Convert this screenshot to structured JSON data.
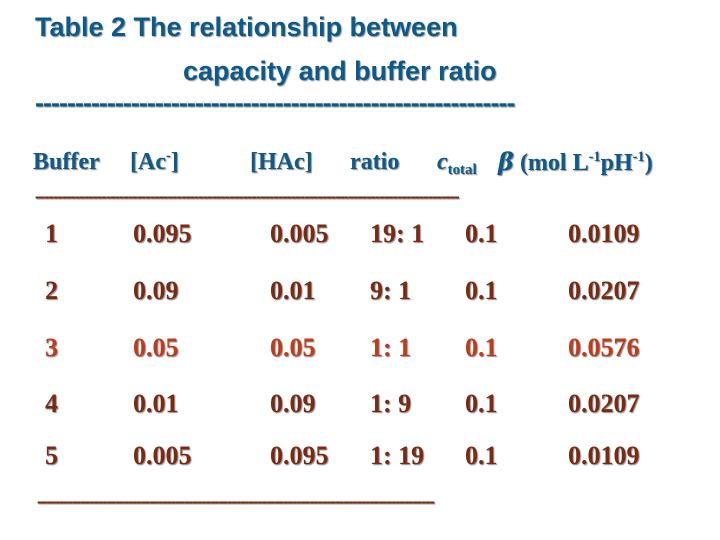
{
  "title_line1": "Table 2 The relationship between",
  "title_line2": "capacity and buffer ratio",
  "title_rule": "------------------------------------------------------------",
  "header": {
    "buffer": "Buffer",
    "ac_prefix": "[Ac",
    "ac_sup": "-",
    "ac_suffix": "]",
    "hac": "[HAc]",
    "ratio": "ratio",
    "ctotal_base": "c",
    "ctotal_sub": "total",
    "beta_symbol": "β",
    "beta_unit_a": " (mol L",
    "beta_sup1": "-1",
    "beta_unit_b": "pH",
    "beta_sup2": "-1",
    "beta_unit_c": ")"
  },
  "header_rule": "------------------------------------------------------------------------------------------------",
  "rows": [
    {
      "buffer": "1",
      "ac": "0.095",
      "hac": "0.005",
      "ratio": "19: 1",
      "ctotal": "0.1",
      "beta": "0.0109"
    },
    {
      "buffer": "2",
      "ac": "0.09",
      "hac": "0.01",
      "ratio": "9: 1",
      "ctotal": "0.1",
      "beta": "0.0207"
    },
    {
      "buffer": "3",
      "ac": "0.05",
      "hac": "0.05",
      "ratio": "1: 1",
      "ctotal": "0.1",
      "beta": "0.0576"
    },
    {
      "buffer": "4",
      "ac": "0.01",
      "hac": "0.09",
      "ratio": "1: 9",
      "ctotal": "0.1",
      "beta": "0.0207"
    },
    {
      "buffer": "5",
      "ac": "0.005",
      "hac": "0.095",
      "ratio": "1: 19",
      "ctotal": "0.1",
      "beta": "0.0109"
    }
  ],
  "footer_rule": "--------------------------------------------------------------------------------------------",
  "colors": {
    "title": "#0d5a8a",
    "row_text": "#7a2a12",
    "highlight_row_text": "#c23a1a"
  }
}
